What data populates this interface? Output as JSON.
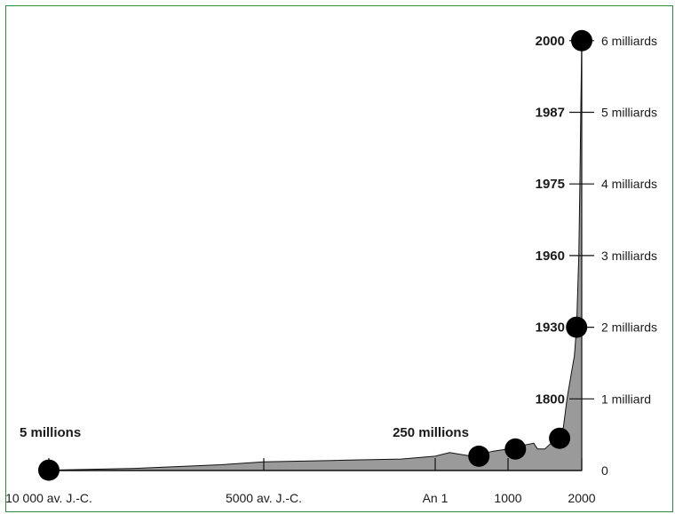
{
  "chart_data": {
    "type": "area",
    "fill_color": "#9a9a9a",
    "x_ticks": [
      {
        "value": -10000,
        "label": "10 000 av. J.-C."
      },
      {
        "value": -5000,
        "label": "5000 av. J.-C."
      },
      {
        "value": 1,
        "label": "An 1"
      },
      {
        "value": 1000,
        "label": "1000"
      },
      {
        "value": 2000,
        "label": "2000"
      }
    ],
    "y_ticks": [
      {
        "value": 0,
        "label": "0"
      },
      {
        "value": 1,
        "label": "1 milliard",
        "year": "1800"
      },
      {
        "value": 2,
        "label": "2 milliards",
        "year": "1930"
      },
      {
        "value": 3,
        "label": "3 milliards",
        "year": "1960"
      },
      {
        "value": 4,
        "label": "4 milliards",
        "year": "1975"
      },
      {
        "value": 5,
        "label": "5 milliards",
        "year": "1987"
      },
      {
        "value": 6,
        "label": "6 milliards",
        "year": "2000"
      }
    ],
    "ylim": [
      0,
      6
    ],
    "population_billions": [
      {
        "x": -10000,
        "y": 0.005
      },
      {
        "x": -8000,
        "y": 0.03
      },
      {
        "x": -6000,
        "y": 0.08
      },
      {
        "x": -5000,
        "y": 0.12
      },
      {
        "x": -3000,
        "y": 0.14
      },
      {
        "x": -1000,
        "y": 0.16
      },
      {
        "x": 1,
        "y": 0.2
      },
      {
        "x": 200,
        "y": 0.25
      },
      {
        "x": 500,
        "y": 0.2
      },
      {
        "x": 800,
        "y": 0.27
      },
      {
        "x": 1000,
        "y": 0.3
      },
      {
        "x": 1200,
        "y": 0.35
      },
      {
        "x": 1350,
        "y": 0.38
      },
      {
        "x": 1400,
        "y": 0.3
      },
      {
        "x": 1500,
        "y": 0.3
      },
      {
        "x": 1650,
        "y": 0.45
      },
      {
        "x": 1750,
        "y": 0.6
      },
      {
        "x": 1800,
        "y": 1.0
      },
      {
        "x": 1850,
        "y": 1.3
      },
      {
        "x": 1900,
        "y": 1.6
      },
      {
        "x": 1930,
        "y": 2.0
      },
      {
        "x": 1960,
        "y": 3.0
      },
      {
        "x": 1975,
        "y": 4.0
      },
      {
        "x": 1987,
        "y": 5.0
      },
      {
        "x": 2000,
        "y": 6.0
      }
    ],
    "markers": [
      {
        "x": -10000,
        "y": 0.005
      },
      {
        "x": 600,
        "y": 0.2
      },
      {
        "x": 1100,
        "y": 0.3
      },
      {
        "x": 1700,
        "y": 0.45
      },
      {
        "x": 1930,
        "y": 2.0
      },
      {
        "x": 2000,
        "y": 6.0
      }
    ],
    "annotations": [
      {
        "text": "5 millions",
        "x": -10000,
        "y": 0.005
      },
      {
        "text": "250 millions",
        "x": 1,
        "y": 0.25
      }
    ],
    "grid": false,
    "legend": "none"
  }
}
